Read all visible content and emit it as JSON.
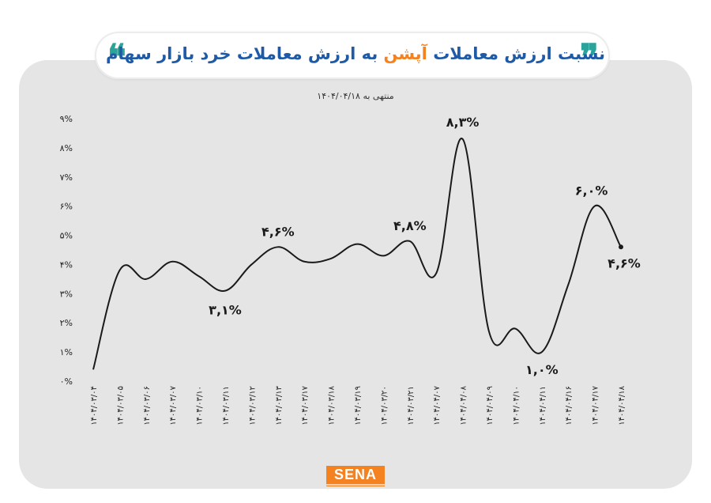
{
  "header": {
    "title_part1": "نسبت ارزش معاملات",
    "title_highlight": "آپشن",
    "title_part2": "به ارزش معاملات خرد بازار سهام",
    "quote_open": "❞",
    "quote_close": "❝",
    "subtitle": "منتهی به ۱۴۰۴/۰۴/۱۸"
  },
  "brand": {
    "logo_text": "SENA"
  },
  "colors": {
    "accent": "#f58220",
    "title": "#1f5aa6",
    "quote": "#2aa39a",
    "line": "#1a1a1a",
    "panel": "#e6e5e6"
  },
  "chart_data": {
    "type": "line",
    "title": "نسبت ارزش معاملات آپشن به ارزش معاملات خرد بازار سهام",
    "subtitle": "منتهی به ۱۴۰۴/۰۴/۱۸",
    "xlabel": "",
    "ylabel": "",
    "ylim": [
      0,
      9
    ],
    "yticks": [
      0,
      1,
      2,
      3,
      4,
      5,
      6,
      7,
      8,
      9
    ],
    "ytick_labels": [
      "٠%",
      "١%",
      "٢%",
      "٣%",
      "۴%",
      "۵%",
      "۶%",
      "٧%",
      "٨%",
      "٩%"
    ],
    "grid": false,
    "categories": [
      "۱۴۰۴/۰۳/۰۴",
      "۱۴۰۴/۰۳/۰۵",
      "۱۴۰۴/۰۳/۰۶",
      "۱۴۰۴/۰۳/۰۷",
      "۱۴۰۴/۰۳/۱۰",
      "۱۴۰۴/۰۳/۱۱",
      "۱۴۰۴/۰۳/۱۲",
      "۱۴۰۴/۰۳/۱۳",
      "۱۴۰۴/۰۳/۱۷",
      "۱۴۰۴/۰۳/۱۸",
      "۱۴۰۴/۰۳/۱۹",
      "۱۴۰۴/۰۳/۲۰",
      "۱۴۰۴/۰۳/۲۱",
      "۱۴۰۴/۰۴/۰۷",
      "۱۴۰۴/۰۴/۰۸",
      "۱۴۰۴/۰۴/۰۹",
      "۱۴۰۴/۰۴/۱۰",
      "۱۴۰۴/۰۴/۱۱",
      "۱۴۰۴/۰۴/۱۶",
      "۱۴۰۴/۰۴/۱۷",
      "۱۴۰۴/۰۴/۱۸"
    ],
    "series": [
      {
        "values": [
          0.4,
          3.8,
          3.5,
          4.1,
          3.6,
          3.1,
          4.0,
          4.6,
          4.1,
          4.2,
          4.7,
          4.3,
          4.8,
          3.7,
          8.3,
          1.7,
          1.8,
          1.0,
          3.3,
          6.0,
          4.6
        ]
      }
    ],
    "data_labels": [
      {
        "index": 5,
        "text": "٣,١%"
      },
      {
        "index": 7,
        "text": "۴,۶%"
      },
      {
        "index": 12,
        "text": "۴,٨%"
      },
      {
        "index": 14,
        "text": "٨,٣%"
      },
      {
        "index": 17,
        "text": "١,٠%"
      },
      {
        "index": 19,
        "text": "۶,٠%"
      },
      {
        "index": 20,
        "text": "۴,۶%"
      }
    ]
  }
}
